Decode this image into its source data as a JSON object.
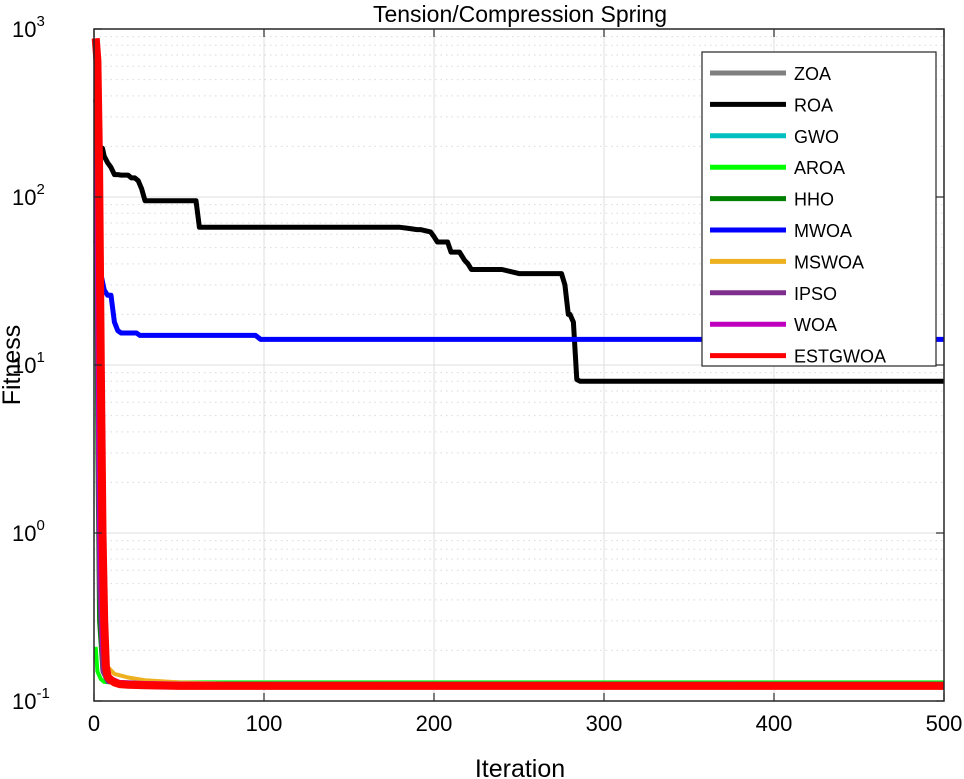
{
  "chart_data": {
    "type": "line",
    "title": "Tension/Compression Spring",
    "xlabel": "Iteration",
    "ylabel": "Fitness",
    "xlim": [
      0,
      500
    ],
    "ylim": [
      0.1,
      1000
    ],
    "yscale": "log",
    "grid": true,
    "legend_position": "top-right",
    "x_ticks": [
      0,
      100,
      200,
      300,
      400,
      500
    ],
    "x_tick_labels": [
      "0",
      "100",
      "200",
      "300",
      "400",
      "500"
    ],
    "y_ticks": [
      0.1,
      1,
      10,
      100,
      1000
    ],
    "y_tick_labels": [
      {
        "base": "10",
        "exp": "-1"
      },
      {
        "base": "10",
        "exp": "0"
      },
      {
        "base": "10",
        "exp": "1"
      },
      {
        "base": "10",
        "exp": "2"
      },
      {
        "base": "10",
        "exp": "3"
      }
    ],
    "series": [
      {
        "name": "ZOA",
        "color": "#808080",
        "width": 4,
        "x": [
          1,
          2,
          3,
          5,
          8,
          12,
          20,
          40,
          500
        ],
        "y": [
          380,
          30,
          2,
          0.3,
          0.14,
          0.128,
          0.125,
          0.124,
          0.124
        ]
      },
      {
        "name": "ROA",
        "color": "#000000",
        "width": 5,
        "x": [
          1,
          3,
          5,
          6,
          8,
          10,
          12,
          14,
          16,
          18,
          20,
          22,
          24,
          26,
          28,
          30,
          60,
          62,
          64,
          180,
          185,
          190,
          192,
          198,
          200,
          202,
          208,
          210,
          212,
          215,
          218,
          220,
          222,
          228,
          235,
          240,
          250,
          255,
          270,
          275,
          277,
          279,
          280,
          282,
          284,
          286,
          290,
          500
        ],
        "y": [
          380,
          200,
          195,
          175,
          160,
          150,
          136,
          136,
          135,
          135,
          135,
          130,
          130,
          125,
          112,
          95,
          95,
          66,
          66,
          66,
          65,
          64,
          64,
          62,
          58,
          54,
          54,
          47,
          47,
          47,
          42,
          40,
          37,
          37,
          37,
          37,
          35,
          35,
          35,
          35,
          30,
          20,
          20,
          18,
          8.2,
          8.0,
          8.0,
          8.0
        ]
      },
      {
        "name": "GWO",
        "color": "#00bfbf",
        "width": 4,
        "x": [
          1,
          2,
          3,
          5,
          8,
          12,
          20,
          40,
          500
        ],
        "y": [
          200,
          5,
          0.5,
          0.16,
          0.135,
          0.128,
          0.126,
          0.126,
          0.126
        ]
      },
      {
        "name": "AROA",
        "color": "#00ff00",
        "width": 4,
        "x": [
          1,
          2,
          4,
          6,
          10,
          20,
          40,
          500
        ],
        "y": [
          0.21,
          0.15,
          0.135,
          0.13,
          0.129,
          0.129,
          0.129,
          0.129
        ]
      },
      {
        "name": "HHO",
        "color": "#007f00",
        "width": 4,
        "x": [
          1,
          2,
          3,
          5,
          8,
          15,
          30,
          500
        ],
        "y": [
          150,
          3,
          0.3,
          0.15,
          0.13,
          0.127,
          0.126,
          0.126
        ]
      },
      {
        "name": "MWOA",
        "color": "#0000ff",
        "width": 5,
        "x": [
          1,
          2,
          4,
          6,
          8,
          10,
          12,
          14,
          16,
          25,
          27,
          95,
          98,
          500
        ],
        "y": [
          55,
          45,
          35,
          28,
          26,
          26,
          18,
          16,
          15.5,
          15.5,
          15,
          15,
          14.2,
          14.2
        ]
      },
      {
        "name": "MSWOA",
        "color": "#edb120",
        "width": 4,
        "x": [
          1,
          3,
          5,
          8,
          12,
          20,
          30,
          50,
          80,
          500
        ],
        "y": [
          300,
          2,
          0.3,
          0.16,
          0.145,
          0.138,
          0.133,
          0.129,
          0.127,
          0.126
        ]
      },
      {
        "name": "IPSO",
        "color": "#7e2f8e",
        "width": 4,
        "x": [
          1,
          2,
          3,
          5,
          8,
          15,
          30,
          500
        ],
        "y": [
          250,
          10,
          0.5,
          0.15,
          0.13,
          0.127,
          0.126,
          0.126
        ]
      },
      {
        "name": "WOA",
        "color": "#bf00bf",
        "width": 4,
        "x": [
          1,
          2,
          3,
          5,
          8,
          15,
          30,
          50,
          500
        ],
        "y": [
          300,
          20,
          1,
          0.2,
          0.14,
          0.13,
          0.128,
          0.127,
          0.127
        ]
      },
      {
        "name": "ESTGWOA",
        "color": "#ff0000",
        "width": 8,
        "x": [
          1,
          2,
          3,
          4,
          5,
          6,
          7,
          8,
          10,
          12,
          15,
          20,
          30,
          50,
          500
        ],
        "y": [
          880,
          650,
          150,
          10,
          1.0,
          0.3,
          0.16,
          0.14,
          0.133,
          0.129,
          0.126,
          0.125,
          0.124,
          0.123,
          0.123
        ]
      }
    ]
  }
}
